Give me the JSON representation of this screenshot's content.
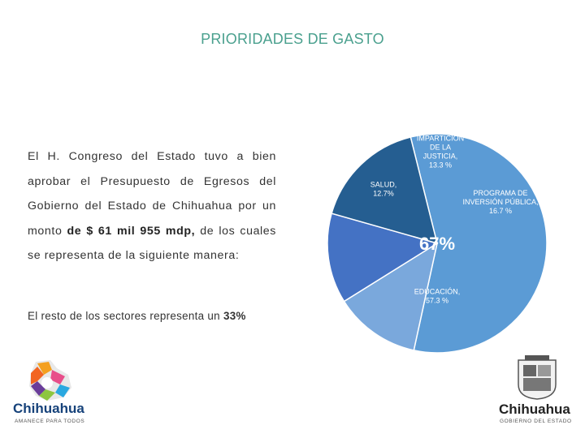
{
  "title": "PRIORIDADES DE GASTO",
  "intro": {
    "text_before": "El H. Congreso del Estado tuvo a bien aprobar el Presupuesto de Egresos del Gobierno del Estado de Chihuahua por un monto ",
    "amount": "de $ 61 mil 955 mdp,",
    "text_after": " de los cuales se representa de la siguiente manera:"
  },
  "rest": {
    "text": "El resto de los sectores representa un ",
    "value": "33%"
  },
  "chart_data": {
    "type": "pie",
    "title": "",
    "center_label": "67%",
    "slices": [
      {
        "label_lines": [
          "EDUCACIÓN,",
          "57.3 %"
        ],
        "value": 57.3,
        "color": "#5b9bd5"
      },
      {
        "label_lines": [
          "SALUD,",
          "12.7%"
        ],
        "value": 12.7,
        "color": "#7aa8dc"
      },
      {
        "label_lines": [
          "IMPARTICIÓN",
          "DE LA",
          "JUSTICIA,",
          "13.3 %"
        ],
        "value": 13.3,
        "color": "#4472c4"
      },
      {
        "label_lines": [
          "PROGRAMA DE",
          "INVERSIÓN PÚBLICA,",
          "16.7 %"
        ],
        "value": 16.7,
        "color": "#255e91"
      }
    ]
  },
  "logos": {
    "left": {
      "name": "Chihuahua",
      "tagline": "AMANECE PARA TODOS"
    },
    "right": {
      "name": "Chihuahua",
      "tagline": "GOBIERNO DEL ESTADO"
    }
  },
  "colors": {
    "title": "#4aa08e",
    "slice_border": "#ffffff"
  }
}
